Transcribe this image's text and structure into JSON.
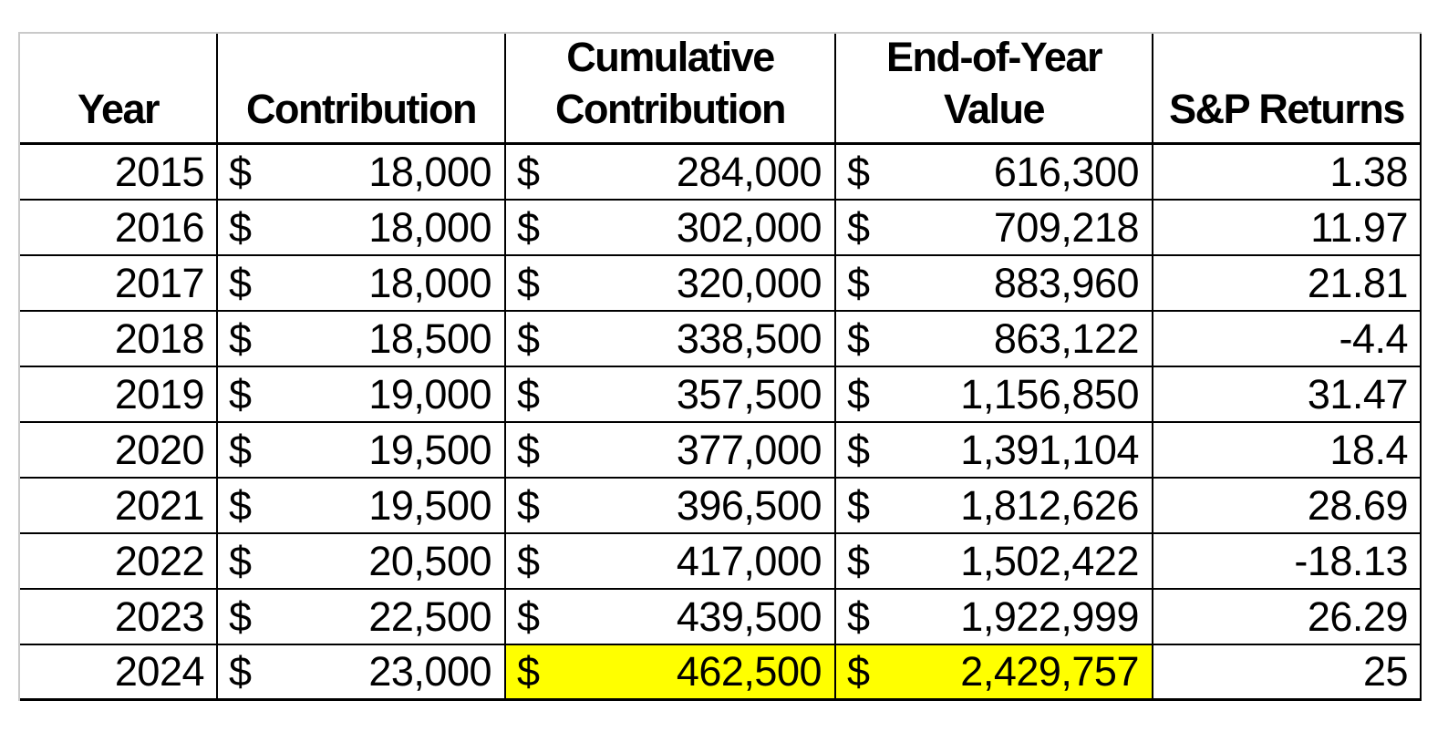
{
  "table": {
    "currency_symbol": "$",
    "highlight_color": "#ffff00",
    "headers": {
      "year": "Year",
      "contribution": "Contribution",
      "cumulative_line1": "Cumulative",
      "cumulative_line2": "Contribution",
      "end_of_year_line1": "End-of-Year",
      "end_of_year_line2": "Value",
      "sp_returns": "S&P Returns"
    },
    "rows": [
      [
        "2015",
        "18,000",
        "284,000",
        "616,300",
        "1.38"
      ],
      [
        "2016",
        "18,000",
        "302,000",
        "709,218",
        "11.97"
      ],
      [
        "2017",
        "18,000",
        "320,000",
        "883,960",
        "21.81"
      ],
      [
        "2018",
        "18,500",
        "338,500",
        "863,122",
        "-4.4"
      ],
      [
        "2019",
        "19,000",
        "357,500",
        "1,156,850",
        "31.47"
      ],
      [
        "2020",
        "19,500",
        "377,000",
        "1,391,104",
        "18.4"
      ],
      [
        "2021",
        "19,500",
        "396,500",
        "1,812,626",
        "28.69"
      ],
      [
        "2022",
        "20,500",
        "417,000",
        "1,502,422",
        "-18.13"
      ],
      [
        "2023",
        "22,500",
        "439,500",
        "1,922,999",
        "26.29"
      ],
      [
        "2024",
        "23,000",
        "462,500",
        "2,429,757",
        "25"
      ]
    ],
    "highlighted_cells": [
      [
        9,
        2
      ],
      [
        9,
        3
      ]
    ]
  }
}
